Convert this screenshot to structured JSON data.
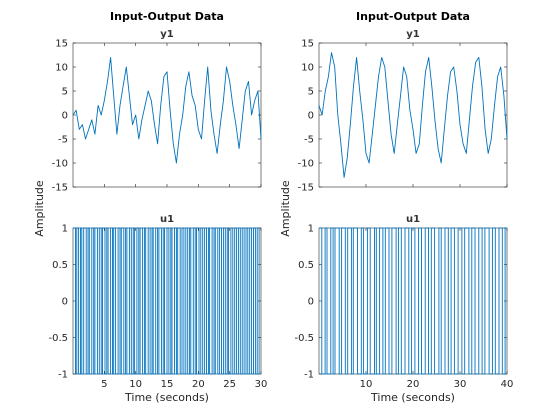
{
  "chart_data": [
    {
      "type": "line",
      "title": "Input-Output Data",
      "ylabel": "Amplitude",
      "xlabel": "Time (seconds)",
      "xlim": [
        0,
        30
      ],
      "xticks": [
        "5",
        "10",
        "15",
        "20",
        "25",
        "30"
      ],
      "panels": [
        {
          "title": "y1",
          "ylim": [
            -15,
            15
          ],
          "yticks": [
            "-15",
            "-10",
            "-5",
            "0",
            "5",
            "10",
            "15"
          ],
          "series": [
            {
              "x": [
                0,
                0.5,
                1,
                1.5,
                2,
                2.5,
                3,
                3.5,
                4,
                4.5,
                5,
                5.5,
                6,
                6.5,
                7,
                7.5,
                8,
                8.5,
                9,
                9.5,
                10,
                10.5,
                11,
                11.5,
                12,
                12.5,
                13,
                13.5,
                14,
                14.5,
                15,
                15.5,
                16,
                16.5,
                17,
                17.5,
                18,
                18.5,
                19,
                19.5,
                20,
                20.5,
                21,
                21.5,
                22,
                22.5,
                23,
                23.5,
                24,
                24.5,
                25,
                25.5,
                26,
                26.5,
                27,
                27.5,
                28,
                28.5,
                29,
                29.5,
                30
              ],
              "y": [
                0,
                1,
                -3,
                -2,
                -5,
                -3,
                -1,
                -4,
                2,
                0,
                3,
                7,
                12,
                4,
                -4,
                2,
                6,
                10,
                4,
                -2,
                0,
                -5,
                -1,
                2,
                5,
                3,
                -2,
                -6,
                2,
                8,
                9,
                1,
                -6,
                -10,
                -4,
                0,
                6,
                9,
                4,
                2,
                -3,
                -5,
                3,
                10,
                1,
                -4,
                -8,
                -2,
                3,
                10,
                7,
                2,
                -2,
                -7,
                -1,
                5,
                7,
                0,
                3,
                5,
                -5
              ]
            }
          ]
        },
        {
          "title": "u1",
          "ylim": [
            -1,
            1
          ],
          "yticks": [
            "-1",
            "-0.5",
            "0",
            "0.5",
            "1"
          ],
          "series": [
            {
              "type": "step",
              "x": [
                0,
                0.4,
                0.6,
                0.9,
                1.2,
                1.4,
                1.7,
                2.1,
                2.4,
                2.6,
                3.0,
                3.3,
                3.5,
                3.9,
                4.2,
                4.5,
                4.7,
                5.1,
                5.4,
                5.6,
                6.0,
                6.3,
                6.5,
                6.8,
                7.2,
                7.5,
                7.7,
                8.1,
                8.4,
                8.6,
                9.0,
                9.3,
                9.6,
                9.8,
                10.2,
                10.5,
                10.7,
                11.1,
                11.4,
                11.6,
                12.0,
                12.3,
                12.6,
                12.8,
                13.2,
                13.5,
                13.7,
                14.1,
                14.4,
                14.6,
                15.0,
                15.3,
                15.6,
                15.8,
                16.2,
                16.5,
                16.7,
                17.1,
                17.4,
                17.7,
                18.0,
                18.3,
                18.6,
                18.8,
                19.2,
                19.5,
                19.7,
                20.1,
                20.4,
                20.7,
                21.0,
                21.3,
                21.6,
                21.8,
                22.2,
                22.5,
                22.7,
                23.1,
                23.4,
                23.7,
                24.0,
                24.3,
                24.6,
                24.8,
                25.2,
                25.5,
                25.8,
                26.1,
                26.4,
                26.7,
                27.0,
                27.3,
                27.6,
                27.9,
                28.2,
                28.5,
                28.8,
                29.1,
                29.4,
                29.7
              ],
              "y": [
                1,
                -1,
                1,
                -1,
                1,
                -1,
                1,
                -1,
                1,
                -1,
                1,
                -1,
                1,
                -1,
                1,
                -1,
                1,
                -1,
                1,
                -1,
                1,
                -1,
                1,
                -1,
                1,
                -1,
                1,
                -1,
                1,
                -1,
                1,
                -1,
                1,
                -1,
                1,
                -1,
                1,
                -1,
                1,
                -1,
                1,
                -1,
                1,
                -1,
                1,
                -1,
                1,
                -1,
                1,
                -1,
                1,
                -1,
                1,
                -1,
                1,
                -1,
                1,
                -1,
                1,
                -1,
                1,
                -1,
                1,
                -1,
                1,
                -1,
                1,
                -1,
                1,
                -1,
                1,
                -1,
                1,
                -1,
                1,
                -1,
                1,
                -1,
                1,
                -1,
                1,
                -1,
                1,
                -1,
                1,
                -1,
                1,
                -1,
                1,
                -1,
                1,
                -1,
                1,
                -1,
                1,
                -1,
                1,
                -1,
                1,
                -1
              ]
            }
          ]
        }
      ]
    },
    {
      "type": "line",
      "title": "Input-Output Data",
      "ylabel": "Amplitude",
      "xlabel": "Time (seconds)",
      "xlim": [
        0,
        40
      ],
      "xticks": [
        "10",
        "20",
        "30",
        "40"
      ],
      "panels": [
        {
          "title": "y1",
          "ylim": [
            -15,
            15
          ],
          "yticks": [
            "-15",
            "-10",
            "-5",
            "0",
            "5",
            "10",
            "15"
          ],
          "series": [
            {
              "x": [
                0,
                0.67,
                1.33,
                2,
                2.67,
                3.33,
                4,
                4.67,
                5.33,
                6,
                6.67,
                7.33,
                8,
                8.67,
                9.33,
                10,
                10.67,
                11.33,
                12,
                12.67,
                13.33,
                14,
                14.67,
                15.33,
                16,
                16.67,
                17.33,
                18,
                18.67,
                19.33,
                20,
                20.67,
                21.33,
                22,
                22.67,
                23.33,
                24,
                24.67,
                25.33,
                26,
                26.67,
                27.33,
                28,
                28.67,
                29.33,
                30,
                30.67,
                31.33,
                32,
                32.67,
                33.33,
                34,
                34.67,
                35.33,
                36,
                36.67,
                37.33,
                38,
                38.67,
                39.33,
                40
              ],
              "y": [
                2,
                0,
                5,
                8,
                13,
                10,
                0,
                -6,
                -13,
                -9,
                -2,
                6,
                12,
                5,
                -1,
                -8,
                -10,
                -4,
                2,
                8,
                12,
                10,
                3,
                -4,
                -8,
                -2,
                4,
                10,
                8,
                1,
                -3,
                -8,
                -6,
                2,
                9,
                12,
                6,
                -1,
                -7,
                -10,
                -3,
                4,
                9,
                10,
                5,
                -2,
                -6,
                -8,
                -1,
                6,
                11,
                12,
                6,
                -3,
                -8,
                -5,
                2,
                8,
                10,
                4,
                -5
              ]
            }
          ]
        },
        {
          "title": "u1",
          "ylim": [
            -1,
            1
          ],
          "yticks": [
            "-1",
            "-0.5",
            "0",
            "0.5",
            "1"
          ],
          "series": [
            {
              "type": "step",
              "x": [
                0,
                0.6,
                1.3,
                1.7,
                2.5,
                3.0,
                3.4,
                4.3,
                4.8,
                5.6,
                6.1,
                6.9,
                7.3,
                8.2,
                9.0,
                9.5,
                10.3,
                10.9,
                11.8,
                12.2,
                12.9,
                13.6,
                14.1,
                14.9,
                15.5,
                16.4,
                16.9,
                17.5,
                18.3,
                19.1,
                19.7,
                20.4,
                21.2,
                21.8,
                22.6,
                23.3,
                23.9,
                24.6,
                25.5,
                26.0,
                26.8,
                27.5,
                28.1,
                28.8,
                29.6,
                30.4,
                31.0,
                31.9,
                32.5,
                33.2,
                34.0,
                34.7,
                35.3,
                36.2,
                36.9,
                37.5,
                38.3,
                39.0,
                39.6
              ],
              "y": [
                1,
                -1,
                1,
                -1,
                1,
                -1,
                1,
                -1,
                1,
                -1,
                1,
                -1,
                1,
                -1,
                1,
                -1,
                1,
                -1,
                1,
                -1,
                1,
                -1,
                1,
                -1,
                1,
                -1,
                1,
                -1,
                1,
                -1,
                1,
                -1,
                1,
                -1,
                1,
                -1,
                1,
                -1,
                1,
                -1,
                1,
                -1,
                1,
                -1,
                1,
                -1,
                1,
                -1,
                1,
                -1,
                1,
                -1,
                1,
                -1,
                1,
                -1,
                1,
                -1,
                1
              ]
            }
          ]
        }
      ]
    }
  ],
  "colors": {
    "line": "#0072bd",
    "axis": "#262626",
    "title": "#000000"
  }
}
